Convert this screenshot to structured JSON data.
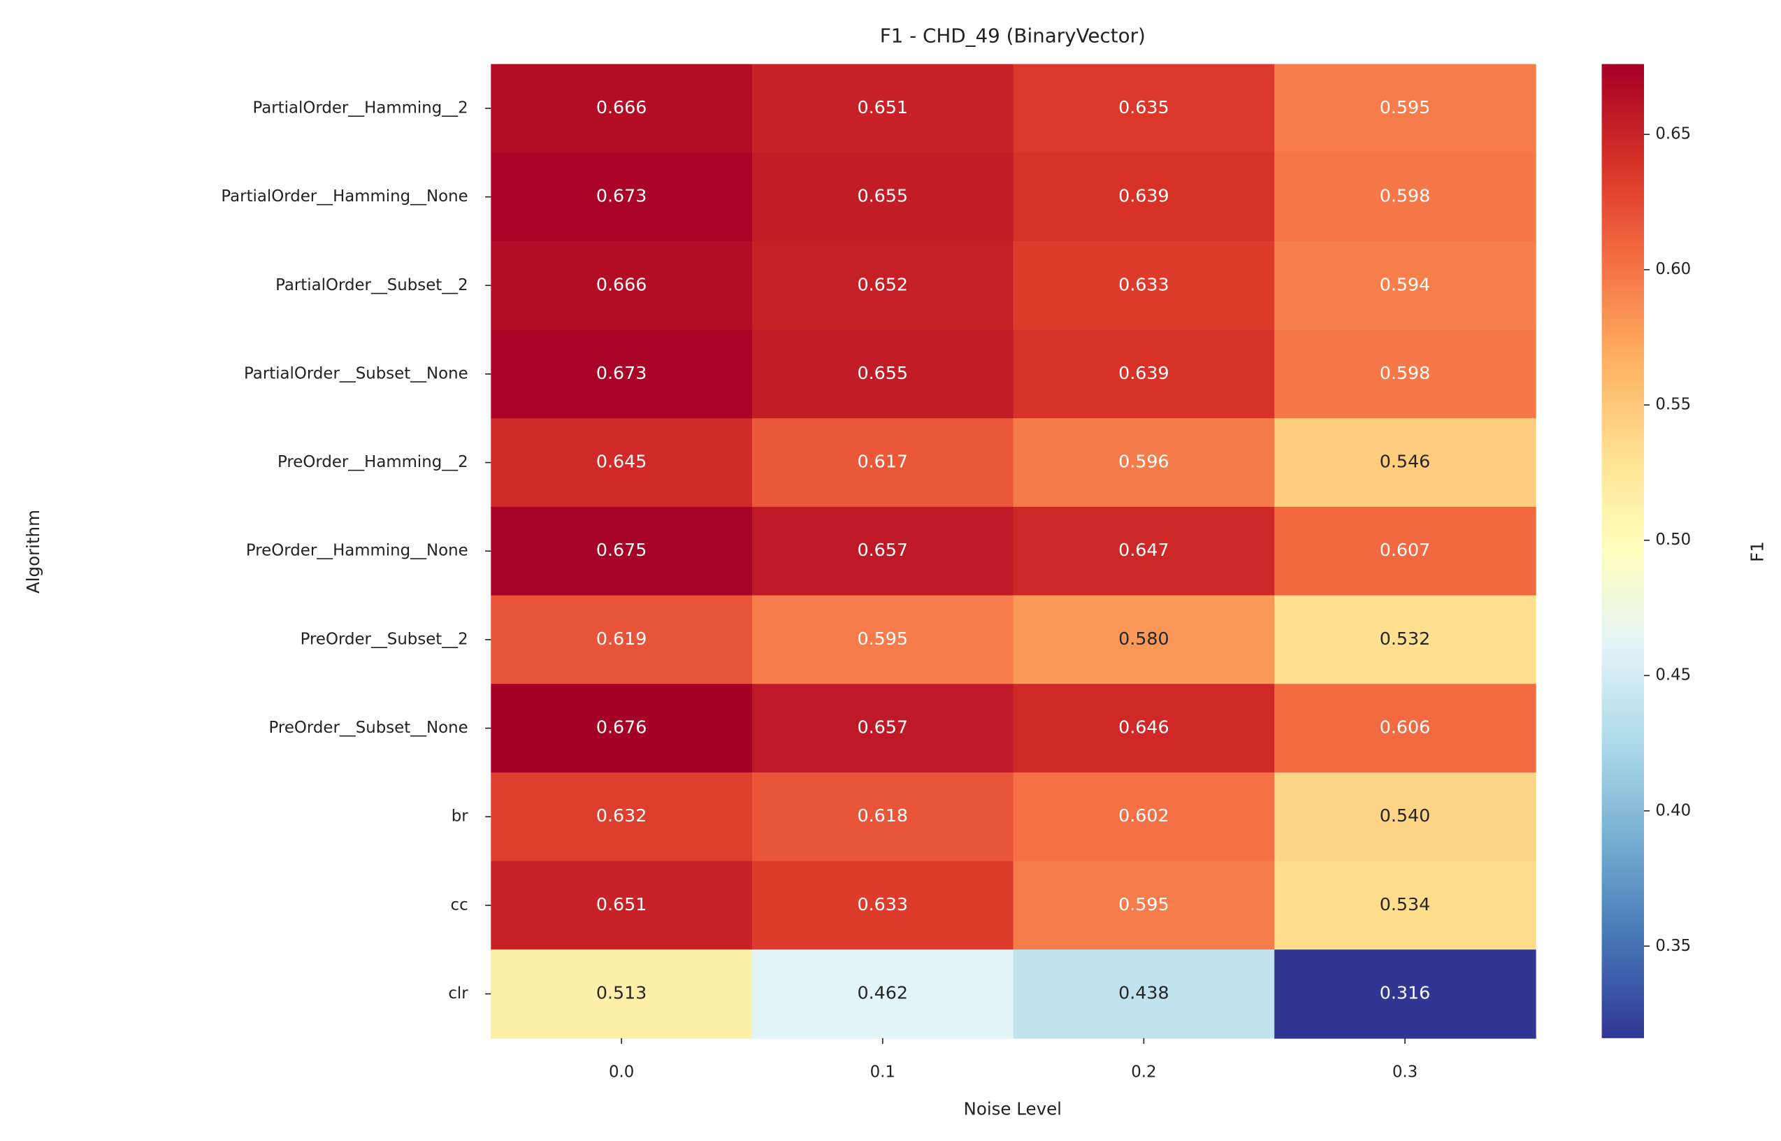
{
  "chart_data": {
    "type": "heatmap",
    "title": "F1 - CHD_49 (BinaryVector)",
    "x_label": "Noise Level",
    "y_label": "Algorithm",
    "x_categories": [
      "0.0",
      "0.1",
      "0.2",
      "0.3"
    ],
    "y_categories": [
      "PartialOrder__Hamming__2",
      "PartialOrder__Hamming__None",
      "PartialOrder__Subset__2",
      "PartialOrder__Subset__None",
      "PreOrder__Hamming__2",
      "PreOrder__Hamming__None",
      "PreOrder__Subset__2",
      "PreOrder__Subset__None",
      "br",
      "cc",
      "clr"
    ],
    "values": [
      [
        0.666,
        0.651,
        0.635,
        0.595
      ],
      [
        0.673,
        0.655,
        0.639,
        0.598
      ],
      [
        0.666,
        0.652,
        0.633,
        0.594
      ],
      [
        0.673,
        0.655,
        0.639,
        0.598
      ],
      [
        0.645,
        0.617,
        0.596,
        0.546
      ],
      [
        0.675,
        0.657,
        0.647,
        0.607
      ],
      [
        0.619,
        0.595,
        0.58,
        0.532
      ],
      [
        0.676,
        0.657,
        0.646,
        0.606
      ],
      [
        0.632,
        0.618,
        0.602,
        0.54
      ],
      [
        0.651,
        0.633,
        0.595,
        0.534
      ],
      [
        0.513,
        0.462,
        0.438,
        0.316
      ]
    ],
    "value_labels": [
      [
        "0.666",
        "0.651",
        "0.635",
        "0.595"
      ],
      [
        "0.673",
        "0.655",
        "0.639",
        "0.598"
      ],
      [
        "0.666",
        "0.652",
        "0.633",
        "0.594"
      ],
      [
        "0.673",
        "0.655",
        "0.639",
        "0.598"
      ],
      [
        "0.645",
        "0.617",
        "0.596",
        "0.546"
      ],
      [
        "0.675",
        "0.657",
        "0.647",
        "0.607"
      ],
      [
        "0.619",
        "0.595",
        "0.580",
        "0.532"
      ],
      [
        "0.676",
        "0.657",
        "0.646",
        "0.606"
      ],
      [
        "0.632",
        "0.618",
        "0.602",
        "0.540"
      ],
      [
        "0.651",
        "0.633",
        "0.595",
        "0.534"
      ],
      [
        "0.513",
        "0.462",
        "0.438",
        "0.316"
      ]
    ],
    "colormap": "RdYlBu_r",
    "colorbar_label": "F1",
    "clim": [
      0.316,
      0.676
    ],
    "cticks": [
      0.35,
      {
        "value": 0.4,
        "label": "0.40"
      },
      0.45,
      {
        "value": 0.5,
        "label": "0.50"
      },
      0.55,
      {
        "value": 0.6,
        "label": "0.60"
      },
      0.65
    ]
  }
}
